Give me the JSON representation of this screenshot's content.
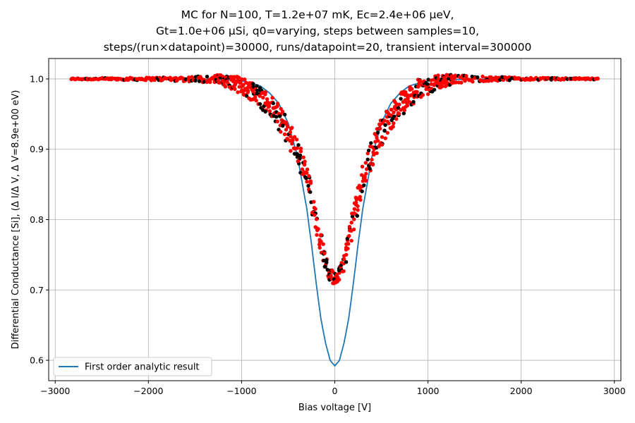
{
  "title_lines": [
    "MC for N=100, T=1.2e+07 mK, Ec=2.4e+06 μeV,",
    "Gt=1.0e+06 μSi, q0=varying, steps between samples=10,",
    "steps/(run×datapoint)=30000, runs/datapoint=20, transient interval=300000"
  ],
  "chart_data": {
    "type": "scatter",
    "xlabel": "Bias voltage [V]",
    "ylabel": "Differential Conductance [Si], (Δ I/Δ V, Δ V=8.9e+00 eV)",
    "xlim": [
      -3070,
      3070
    ],
    "ylim": [
      0.571,
      1.029
    ],
    "xticks": [
      -3000,
      -2000,
      -1000,
      0,
      1000,
      2000,
      3000
    ],
    "xtick_labels": [
      "−3000",
      "−2000",
      "−1000",
      "0",
      "1000",
      "2000",
      "3000"
    ],
    "yticks": [
      0.6,
      0.7,
      0.8,
      0.9,
      1.0
    ],
    "ytick_labels": [
      "0.6",
      "0.7",
      "0.8",
      "0.9",
      "1.0"
    ],
    "grid": true,
    "legend_position": "lower-left",
    "legend": [
      {
        "label": "First order analytic result",
        "color": "#1f77b4"
      }
    ],
    "colors": {
      "analytic_line": "#1f77b4",
      "mc_points_bright": "#ff0000",
      "mc_points_dark": "#000000"
    },
    "analytic_line": {
      "name": "First order analytic result",
      "x": [
        -2830,
        -2000,
        -1500,
        -1200,
        -1000,
        -900,
        -800,
        -700,
        -600,
        -500,
        -400,
        -300,
        -250,
        -200,
        -150,
        -100,
        -50,
        0,
        50,
        100,
        150,
        200,
        250,
        300,
        400,
        500,
        600,
        700,
        800,
        900,
        1000,
        1200,
        1500,
        2000,
        2830
      ],
      "y": [
        1.0,
        1.0,
        0.9995,
        0.999,
        0.997,
        0.994,
        0.99,
        0.98,
        0.965,
        0.937,
        0.89,
        0.815,
        0.765,
        0.71,
        0.66,
        0.625,
        0.6,
        0.592,
        0.6,
        0.625,
        0.66,
        0.71,
        0.765,
        0.815,
        0.89,
        0.937,
        0.965,
        0.98,
        0.99,
        0.994,
        0.997,
        0.999,
        0.9995,
        1.0,
        1.0
      ]
    },
    "mc_envelope": {
      "description": "Monte Carlo sample points (red and near-black markers), spread around this mean curve",
      "x": [
        -2830,
        -2000,
        -1500,
        -1300,
        -1200,
        -1100,
        -1000,
        -900,
        -800,
        -700,
        -600,
        -500,
        -400,
        -300,
        -250,
        -200,
        -150,
        -100,
        -50,
        0,
        50,
        100,
        150,
        200,
        250,
        300,
        400,
        500,
        600,
        700,
        800,
        900,
        1000,
        1100,
        1200,
        1300,
        1500,
        2000,
        2830
      ],
      "y": [
        1.0,
        1.0,
        1.0,
        1.0,
        0.998,
        0.995,
        0.99,
        0.985,
        0.975,
        0.962,
        0.945,
        0.925,
        0.895,
        0.86,
        0.83,
        0.8,
        0.77,
        0.74,
        0.722,
        0.715,
        0.722,
        0.74,
        0.77,
        0.8,
        0.83,
        0.86,
        0.895,
        0.925,
        0.945,
        0.962,
        0.975,
        0.985,
        0.99,
        0.995,
        0.998,
        1.0,
        1.0,
        1.0,
        1.0
      ],
      "spread": [
        0.001,
        0.002,
        0.004,
        0.006,
        0.008,
        0.01,
        0.012,
        0.015,
        0.015,
        0.018,
        0.018,
        0.02,
        0.02,
        0.02,
        0.02,
        0.02,
        0.016,
        0.012,
        0.01,
        0.008,
        0.01,
        0.012,
        0.016,
        0.02,
        0.02,
        0.02,
        0.02,
        0.02,
        0.018,
        0.018,
        0.015,
        0.015,
        0.012,
        0.01,
        0.008,
        0.006,
        0.004,
        0.002,
        0.001
      ]
    }
  }
}
